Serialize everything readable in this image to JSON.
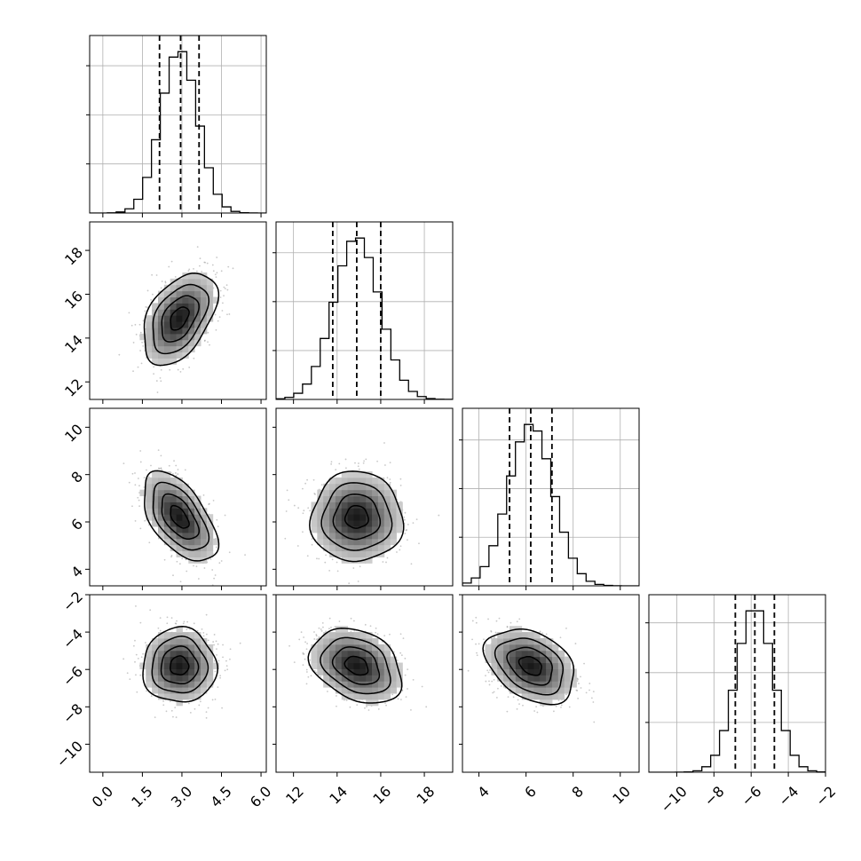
{
  "chart_data": {
    "type": "corner",
    "description_visible": "corner plot of 4 parameters: 1D histograms on diagonal, 2D density with contours below",
    "parameters": [
      {
        "range": [
          -0.5,
          6.2
        ],
        "ticks": [
          0.0,
          1.5,
          3.0,
          4.5,
          6.0
        ],
        "tick_labels": [
          "0.0",
          "1.5",
          "3.0",
          "4.5",
          "6.0"
        ],
        "mean": 2.9,
        "sd": 0.7,
        "quantiles": [
          2.15,
          2.95,
          3.65
        ]
      },
      {
        "range": [
          11.2,
          19.3
        ],
        "ticks": [
          12,
          14,
          16,
          18
        ],
        "tick_labels": [
          "12",
          "14",
          "16",
          "18"
        ],
        "mean": 14.9,
        "sd": 1.05,
        "quantiles": [
          13.8,
          14.9,
          16.0
        ]
      },
      {
        "range": [
          3.3,
          10.8
        ],
        "ticks": [
          4,
          6,
          8,
          10
        ],
        "tick_labels": [
          "4",
          "6",
          "8",
          "10"
        ],
        "mean": 6.2,
        "sd": 0.95,
        "quantiles": [
          5.3,
          6.2,
          7.1
        ]
      },
      {
        "range": [
          -11.5,
          -2.0
        ],
        "ticks": [
          -10,
          -8,
          -6,
          -4,
          -2
        ],
        "tick_labels": [
          "−10",
          "−8",
          "−6",
          "−4",
          "−2"
        ],
        "mean": -5.8,
        "sd": 1.0,
        "quantiles": [
          -6.85,
          -5.8,
          -4.75
        ]
      }
    ],
    "correlations": {
      "1-0": 0.45,
      "2-0": -0.55,
      "2-1": 0.0,
      "3-0": 0.0,
      "3-1": -0.3,
      "3-2": -0.35
    },
    "contour_levels_sigma": [
      0.5,
      1.0,
      1.5,
      2.0
    ],
    "diag_histogram_bins": 20,
    "grid": true,
    "colors": {
      "line": "#000000",
      "grid": "#b0b0b0",
      "density_max": "#1a1a1a",
      "scatter": "#9a9a9a"
    }
  }
}
